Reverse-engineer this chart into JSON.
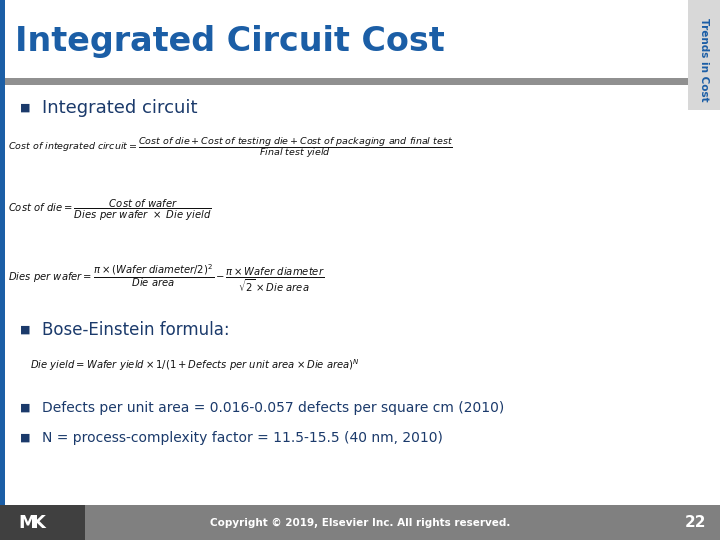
{
  "title": "Integrated Circuit Cost",
  "title_color": "#1B5EA6",
  "sidebar_text": "Trends in Cost",
  "sidebar_text_color": "#1B5EA6",
  "sidebar_bg": "#D8D8D8",
  "bg_color": "#FFFFFF",
  "header_bar_color": "#909090",
  "bullet_color": "#1B3A6B",
  "left_bar_color": "#1B5EA6",
  "bullet1": "Integrated circuit",
  "bullet2": "Bose-Einstein formula:",
  "bullet3": "Defects per unit area = 0.016-0.057 defects per square cm (2010)",
  "bullet4": "N = process-complexity factor = 11.5-15.5 (40 nm, 2010)",
  "footer_text": "Copyright © 2019, Elsevier Inc. All rights reserved.",
  "page_number": "22",
  "footer_bg": "#808080",
  "footer_dark_bg": "#404040",
  "footer_text_color": "#FFFFFF",
  "formula_color": "#111111"
}
